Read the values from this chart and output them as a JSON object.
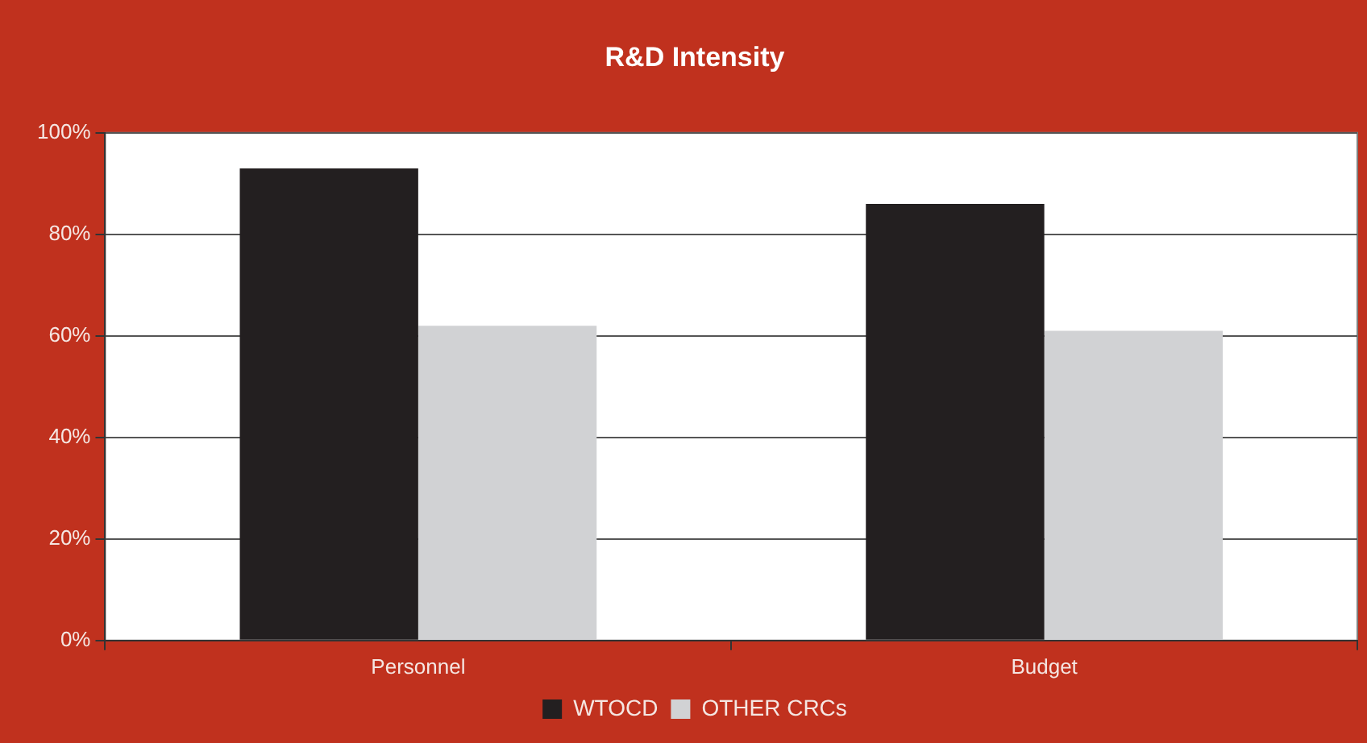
{
  "chart_data": {
    "type": "bar",
    "title": "R&D Intensity",
    "categories": [
      "Personnel",
      "Budget"
    ],
    "series": [
      {
        "name": "WTOCD",
        "color": "#231f20",
        "values": [
          93,
          86
        ]
      },
      {
        "name": "OTHER CRCs",
        "color": "#d1d2d4",
        "values": [
          62,
          61
        ]
      }
    ],
    "ylim": [
      0,
      100
    ],
    "yticks": [
      {
        "value": 0,
        "label": "0%"
      },
      {
        "value": 20,
        "label": "20%"
      },
      {
        "value": 40,
        "label": "40%"
      },
      {
        "value": 60,
        "label": "60%"
      },
      {
        "value": 80,
        "label": "80%"
      },
      {
        "value": 100,
        "label": "100%"
      }
    ],
    "grid": "y",
    "legend": "bottom"
  }
}
